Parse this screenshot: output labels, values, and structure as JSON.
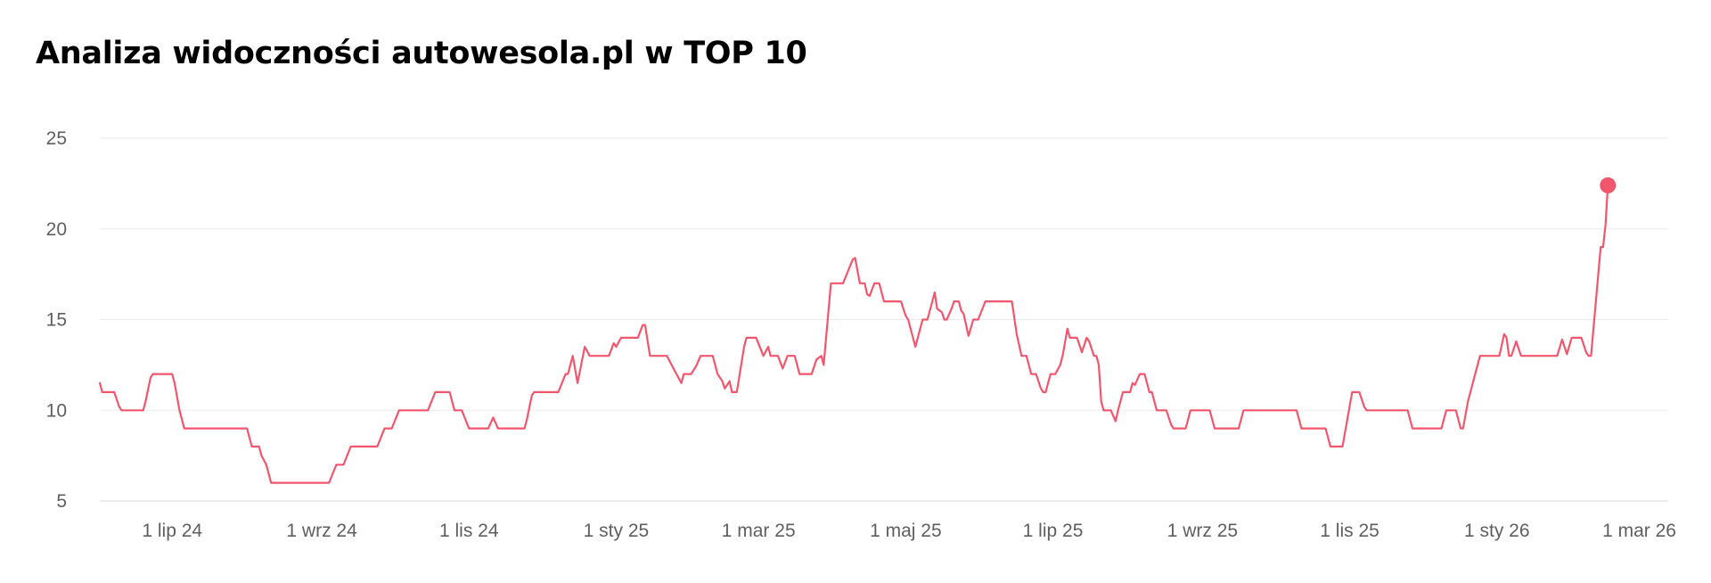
{
  "chart_data": {
    "type": "line",
    "title": "Analiza widoczności autowesola.pl w TOP 10",
    "xlabel": "",
    "ylabel": "",
    "x_start": "2024-06-01",
    "x_end": "2026-03-13",
    "xlim": [
      "2024-06-01",
      "2026-03-13"
    ],
    "ylim": [
      5,
      25
    ],
    "y_ticks": [
      5,
      10,
      15,
      20,
      25
    ],
    "x_ticks": [
      {
        "date": "2024-07-01",
        "label": "1 lip 24"
      },
      {
        "date": "2024-09-01",
        "label": "1 wrz 24"
      },
      {
        "date": "2024-11-01",
        "label": "1 lis 24"
      },
      {
        "date": "2025-01-01",
        "label": "1 sty 25"
      },
      {
        "date": "2025-03-01",
        "label": "1 mar 25"
      },
      {
        "date": "2025-05-01",
        "label": "1 maj 25"
      },
      {
        "date": "2025-07-01",
        "label": "1 lip 25"
      },
      {
        "date": "2025-09-01",
        "label": "1 wrz 25"
      },
      {
        "date": "2025-11-01",
        "label": "1 lis 25"
      },
      {
        "date": "2026-01-01",
        "label": "1 sty 26"
      },
      {
        "date": "2026-03-01",
        "label": "1 mar 26"
      }
    ],
    "grid": true,
    "line_color": "#f2566c",
    "end_marker": true,
    "series": [
      {
        "values": [
          [
            0,
            11.5
          ],
          [
            1,
            11
          ],
          [
            6,
            11
          ],
          [
            8,
            10.2
          ],
          [
            9,
            10
          ],
          [
            18,
            10
          ],
          [
            19,
            10.5
          ],
          [
            21,
            11.8
          ],
          [
            22,
            12
          ],
          [
            30,
            12
          ],
          [
            31,
            11.5
          ],
          [
            33,
            10
          ],
          [
            35,
            9
          ],
          [
            61,
            9
          ],
          [
            63,
            8
          ],
          [
            66,
            8
          ],
          [
            67,
            7.5
          ],
          [
            69,
            7
          ],
          [
            71,
            6
          ],
          [
            95,
            6
          ],
          [
            98,
            7
          ],
          [
            101,
            7
          ],
          [
            104,
            8
          ],
          [
            115,
            8
          ],
          [
            118,
            9
          ],
          [
            121,
            9
          ],
          [
            124,
            10
          ],
          [
            136,
            10
          ],
          [
            139,
            11
          ],
          [
            145,
            11
          ],
          [
            147,
            10
          ],
          [
            150,
            10
          ],
          [
            153,
            9
          ],
          [
            161,
            9
          ],
          [
            163,
            9.6
          ],
          [
            165,
            9
          ],
          [
            176,
            9
          ],
          [
            177,
            9.5
          ],
          [
            179,
            10.8
          ],
          [
            180,
            11
          ],
          [
            190,
            11
          ],
          [
            193,
            12
          ],
          [
            194,
            12
          ],
          [
            196,
            13
          ],
          [
            198,
            11.5
          ],
          [
            201,
            13.5
          ],
          [
            203,
            13
          ],
          [
            211,
            13
          ],
          [
            213,
            13.7
          ],
          [
            214,
            13.5
          ],
          [
            216,
            14
          ],
          [
            223,
            14
          ],
          [
            225,
            14.7
          ],
          [
            226,
            14.7
          ],
          [
            228,
            13
          ],
          [
            235,
            13
          ],
          [
            239,
            12
          ],
          [
            241,
            11.5
          ],
          [
            242,
            12
          ],
          [
            245,
            12
          ],
          [
            247,
            12.4
          ],
          [
            249,
            13
          ],
          [
            254,
            13
          ],
          [
            256,
            12
          ],
          [
            258,
            11.6
          ],
          [
            259,
            11.2
          ],
          [
            261,
            11.6
          ],
          [
            262,
            11
          ],
          [
            264,
            11
          ],
          [
            267,
            13.5
          ],
          [
            268,
            14
          ],
          [
            272,
            14
          ],
          [
            275,
            13
          ],
          [
            277,
            13.5
          ],
          [
            278,
            13
          ],
          [
            281,
            13
          ],
          [
            283,
            12.3
          ],
          [
            285,
            13
          ],
          [
            288,
            13
          ],
          [
            290,
            12
          ],
          [
            295,
            12
          ],
          [
            297,
            12.8
          ],
          [
            299,
            13
          ],
          [
            300,
            12.5
          ],
          [
            303,
            17
          ],
          [
            308,
            17
          ],
          [
            312,
            18.3
          ],
          [
            313,
            18.4
          ],
          [
            315,
            17
          ],
          [
            317,
            17
          ],
          [
            318,
            16.4
          ],
          [
            319,
            16.3
          ],
          [
            321,
            17
          ],
          [
            323,
            17
          ],
          [
            325,
            16
          ],
          [
            332,
            16
          ],
          [
            334,
            15.2
          ],
          [
            335,
            15
          ],
          [
            337,
            14
          ],
          [
            338,
            13.5
          ],
          [
            341,
            15
          ],
          [
            343,
            15
          ],
          [
            345,
            16
          ],
          [
            346,
            16.5
          ],
          [
            347,
            15.6
          ],
          [
            349,
            15.4
          ],
          [
            350,
            15
          ],
          [
            351,
            15
          ],
          [
            353,
            15.6
          ],
          [
            354,
            16
          ],
          [
            356,
            16
          ],
          [
            357,
            15.5
          ],
          [
            358,
            15.3
          ],
          [
            360,
            14.1
          ],
          [
            362,
            15
          ],
          [
            364,
            15
          ],
          [
            367,
            16
          ],
          [
            378,
            16
          ],
          [
            380,
            14.2
          ],
          [
            382,
            13
          ],
          [
            384,
            13
          ],
          [
            386,
            12
          ],
          [
            388,
            12
          ],
          [
            390,
            11.2
          ],
          [
            391,
            11
          ],
          [
            392,
            11
          ],
          [
            394,
            12
          ],
          [
            396,
            12
          ],
          [
            398,
            12.5
          ],
          [
            399,
            13
          ],
          [
            401,
            14.5
          ],
          [
            402,
            14
          ],
          [
            405,
            14
          ],
          [
            407,
            13.2
          ],
          [
            409,
            14
          ],
          [
            410,
            13.8
          ],
          [
            412,
            13
          ],
          [
            413,
            13
          ],
          [
            414,
            12.5
          ],
          [
            415,
            10.5
          ],
          [
            416,
            10
          ],
          [
            419,
            10
          ],
          [
            421,
            9.4
          ],
          [
            422,
            10
          ],
          [
            424,
            11
          ],
          [
            427,
            11
          ],
          [
            428,
            11.5
          ],
          [
            429,
            11.4
          ],
          [
            431,
            12
          ],
          [
            433,
            12
          ],
          [
            435,
            11
          ],
          [
            436,
            11
          ],
          [
            438,
            10
          ],
          [
            442,
            10
          ],
          [
            444,
            9.2
          ],
          [
            445,
            9
          ],
          [
            450,
            9
          ],
          [
            452,
            10
          ],
          [
            460,
            10
          ],
          [
            462,
            9
          ],
          [
            472,
            9
          ],
          [
            474,
            10
          ],
          [
            496,
            10
          ],
          [
            498,
            9
          ],
          [
            508,
            9
          ],
          [
            510,
            8
          ],
          [
            515,
            8
          ],
          [
            517,
            9.5
          ],
          [
            519,
            11
          ],
          [
            522,
            11
          ],
          [
            524,
            10.2
          ],
          [
            525,
            10
          ],
          [
            542,
            10
          ],
          [
            544,
            9
          ],
          [
            556,
            9
          ],
          [
            558,
            10
          ],
          [
            562,
            10
          ],
          [
            564,
            9
          ],
          [
            565,
            9
          ],
          [
            567,
            10.5
          ],
          [
            569,
            11.5
          ],
          [
            572,
            13
          ],
          [
            580,
            13
          ],
          [
            582,
            14.2
          ],
          [
            583,
            14
          ],
          [
            584,
            13
          ],
          [
            585,
            13
          ],
          [
            587,
            13.8
          ],
          [
            589,
            13
          ],
          [
            604,
            13
          ],
          [
            606,
            13.9
          ],
          [
            608,
            13.1
          ],
          [
            610,
            14
          ],
          [
            614,
            14
          ],
          [
            616,
            13.2
          ],
          [
            617,
            13
          ],
          [
            618,
            13
          ],
          [
            620,
            16
          ],
          [
            622,
            19
          ],
          [
            623,
            19
          ],
          [
            624,
            20.2
          ],
          [
            625,
            22.4
          ]
        ]
      }
    ]
  }
}
